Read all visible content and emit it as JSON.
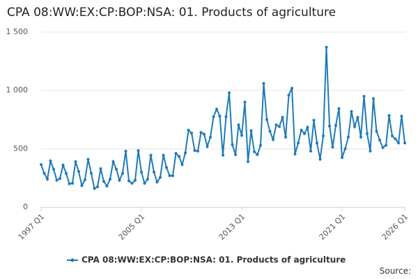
{
  "chart_data": {
    "type": "line",
    "title": "CPA 08:WW:EX:CP:BOP:NSA: 01. Products of agriculture",
    "source": "Source:",
    "categories": [
      "1997 Q1",
      null,
      null,
      null,
      null,
      null,
      null,
      null,
      null,
      null,
      null,
      null,
      null,
      null,
      null,
      null,
      null,
      null,
      null,
      null,
      null,
      null,
      null,
      null,
      null,
      null,
      null,
      null,
      null,
      null,
      null,
      null,
      "2005 Q1",
      null,
      null,
      null,
      null,
      null,
      null,
      null,
      null,
      null,
      null,
      null,
      null,
      null,
      null,
      null,
      null,
      null,
      null,
      null,
      null,
      null,
      null,
      null,
      null,
      null,
      null,
      null,
      null,
      null,
      null,
      null,
      "2013 Q1",
      null,
      null,
      null,
      null,
      null,
      null,
      null,
      null,
      null,
      null,
      null,
      null,
      null,
      null,
      null,
      null,
      null,
      null,
      null,
      null,
      null,
      null,
      null,
      null,
      null,
      null,
      null,
      null,
      null,
      null,
      null,
      "2021 Q1",
      null,
      null,
      null,
      null,
      null,
      null,
      null,
      null,
      null,
      null,
      null,
      null,
      null,
      null,
      null,
      null,
      null,
      null,
      null,
      "2026 Q1"
    ],
    "series": [
      {
        "name": "CPA 08:WW:EX:CP:BOP:NSA: 01. Products of agriculture",
        "color": "#1f7ab8",
        "values": [
          365,
          290,
          240,
          395,
          325,
          230,
          245,
          360,
          290,
          200,
          205,
          390,
          305,
          185,
          235,
          410,
          290,
          160,
          175,
          330,
          220,
          180,
          240,
          390,
          325,
          230,
          290,
          480,
          225,
          205,
          230,
          485,
          300,
          205,
          240,
          445,
          300,
          215,
          255,
          445,
          340,
          270,
          270,
          460,
          435,
          365,
          465,
          660,
          635,
          485,
          480,
          640,
          625,
          520,
          600,
          775,
          840,
          780,
          445,
          775,
          980,
          535,
          450,
          705,
          615,
          900,
          390,
          655,
          475,
          450,
          530,
          1060,
          750,
          650,
          580,
          705,
          690,
          770,
          600,
          960,
          1020,
          455,
          550,
          660,
          630,
          685,
          480,
          745,
          550,
          410,
          610,
          1370,
          695,
          515,
          700,
          845,
          425,
          500,
          600,
          820,
          690,
          770,
          600,
          950,
          630,
          480,
          930,
          650,
          575,
          510,
          530,
          785,
          610,
          585,
          550,
          780,
          550
        ]
      }
    ],
    "ylim": [
      0,
      1500
    ],
    "yticks": [
      0,
      500,
      {
        "value": 1000,
        "label": "1 000"
      },
      {
        "value": 1500,
        "label": "1 500"
      }
    ],
    "grid": true
  }
}
